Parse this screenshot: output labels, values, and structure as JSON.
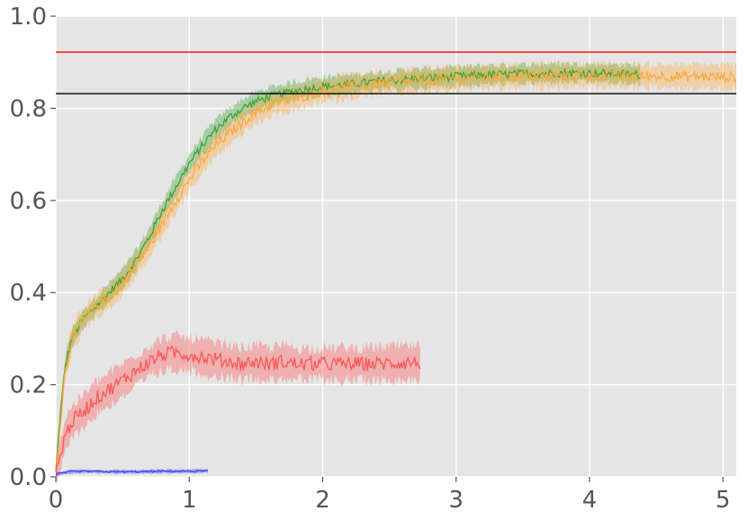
{
  "chart_data": {
    "type": "line",
    "title": "",
    "xlabel": "",
    "ylabel": "",
    "xlim": [
      0,
      5.1
    ],
    "ylim": [
      0,
      1.0
    ],
    "grid": true,
    "background": "#E5E5E5",
    "x_ticks": [
      0,
      1,
      2,
      3,
      4,
      5
    ],
    "x_tick_labels": [
      "0",
      "1",
      "2",
      "3",
      "4",
      "5"
    ],
    "y_ticks": [
      0.0,
      0.2,
      0.4,
      0.6,
      0.8,
      1.0
    ],
    "y_tick_labels": [
      "0.0",
      "0.2",
      "0.4",
      "0.6",
      "0.8",
      "1.0"
    ],
    "reference_lines": [
      {
        "y": 0.922,
        "color": "#FF0000"
      },
      {
        "y": 0.832,
        "color": "#000000"
      }
    ],
    "series": [
      {
        "color": "#33A02C",
        "band": 0.02,
        "points": [
          [
            0,
            0.01
          ],
          [
            0.03,
            0.12
          ],
          [
            0.07,
            0.24
          ],
          [
            0.12,
            0.3
          ],
          [
            0.2,
            0.34
          ],
          [
            0.3,
            0.37
          ],
          [
            0.4,
            0.4
          ],
          [
            0.5,
            0.43
          ],
          [
            0.6,
            0.47
          ],
          [
            0.7,
            0.52
          ],
          [
            0.8,
            0.58
          ],
          [
            0.9,
            0.63
          ],
          [
            1.0,
            0.68
          ],
          [
            1.1,
            0.72
          ],
          [
            1.2,
            0.755
          ],
          [
            1.3,
            0.78
          ],
          [
            1.4,
            0.8
          ],
          [
            1.5,
            0.815
          ],
          [
            1.6,
            0.825
          ],
          [
            1.7,
            0.832
          ],
          [
            1.8,
            0.838
          ],
          [
            1.9,
            0.843
          ],
          [
            2.0,
            0.847
          ],
          [
            2.2,
            0.852
          ],
          [
            2.4,
            0.858
          ],
          [
            2.6,
            0.862
          ],
          [
            2.8,
            0.866
          ],
          [
            3.0,
            0.869
          ],
          [
            3.2,
            0.872
          ],
          [
            3.5,
            0.875
          ],
          [
            3.8,
            0.877
          ],
          [
            4.1,
            0.876
          ],
          [
            4.38,
            0.873
          ]
        ]
      },
      {
        "color": "#FFA533",
        "band": 0.025,
        "points": [
          [
            0,
            0.01
          ],
          [
            0.03,
            0.11
          ],
          [
            0.07,
            0.23
          ],
          [
            0.12,
            0.3
          ],
          [
            0.2,
            0.34
          ],
          [
            0.3,
            0.37
          ],
          [
            0.4,
            0.39
          ],
          [
            0.5,
            0.42
          ],
          [
            0.6,
            0.46
          ],
          [
            0.7,
            0.5
          ],
          [
            0.8,
            0.55
          ],
          [
            0.9,
            0.6
          ],
          [
            1.0,
            0.645
          ],
          [
            1.1,
            0.685
          ],
          [
            1.2,
            0.72
          ],
          [
            1.3,
            0.745
          ],
          [
            1.4,
            0.77
          ],
          [
            1.5,
            0.79
          ],
          [
            1.6,
            0.805
          ],
          [
            1.7,
            0.815
          ],
          [
            1.8,
            0.822
          ],
          [
            1.9,
            0.83
          ],
          [
            2.0,
            0.838
          ],
          [
            2.2,
            0.847
          ],
          [
            2.4,
            0.853
          ],
          [
            2.6,
            0.858
          ],
          [
            2.8,
            0.862
          ],
          [
            3.0,
            0.865
          ],
          [
            3.3,
            0.868
          ],
          [
            3.6,
            0.87
          ],
          [
            4.0,
            0.871
          ],
          [
            4.4,
            0.87
          ],
          [
            4.8,
            0.869
          ],
          [
            5.1,
            0.868
          ]
        ]
      },
      {
        "color": "#FF4D4D",
        "band": 0.035,
        "points": [
          [
            0,
            0.01
          ],
          [
            0.03,
            0.04
          ],
          [
            0.07,
            0.09
          ],
          [
            0.12,
            0.12
          ],
          [
            0.2,
            0.14
          ],
          [
            0.3,
            0.17
          ],
          [
            0.4,
            0.19
          ],
          [
            0.5,
            0.21
          ],
          [
            0.6,
            0.23
          ],
          [
            0.7,
            0.25
          ],
          [
            0.8,
            0.265
          ],
          [
            0.9,
            0.27
          ],
          [
            1.0,
            0.265
          ],
          [
            1.1,
            0.26
          ],
          [
            1.2,
            0.255
          ],
          [
            1.3,
            0.25
          ],
          [
            1.4,
            0.245
          ],
          [
            1.5,
            0.25
          ],
          [
            1.6,
            0.245
          ],
          [
            1.7,
            0.25
          ],
          [
            1.8,
            0.245
          ],
          [
            1.9,
            0.245
          ],
          [
            2.0,
            0.245
          ],
          [
            2.2,
            0.245
          ],
          [
            2.4,
            0.245
          ],
          [
            2.6,
            0.248
          ],
          [
            2.73,
            0.248
          ]
        ]
      },
      {
        "color": "#3333FF",
        "band": 0.004,
        "points": [
          [
            0,
            0.005
          ],
          [
            0.05,
            0.008
          ],
          [
            0.1,
            0.011
          ],
          [
            0.2,
            0.012
          ],
          [
            0.4,
            0.011
          ],
          [
            0.6,
            0.011
          ],
          [
            0.8,
            0.012
          ],
          [
            1.0,
            0.012
          ],
          [
            1.14,
            0.013
          ]
        ]
      }
    ]
  }
}
